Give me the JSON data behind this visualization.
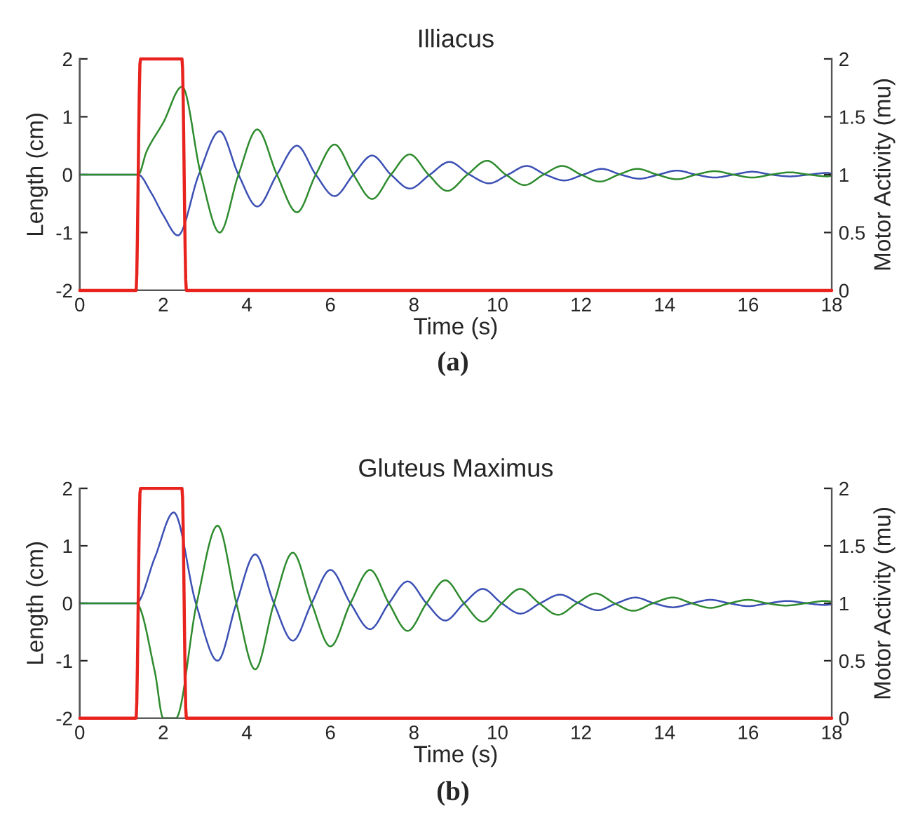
{
  "chart_data": [
    {
      "type": "line",
      "title": "Illiacus",
      "xlabel": "Time (s)",
      "ylabel": "Length (cm)",
      "y2label": "Motor Activity (mu)",
      "annotations": [
        "(a)"
      ],
      "xlim": [
        0,
        18
      ],
      "xticks": [
        0,
        2,
        4,
        6,
        8,
        10,
        12,
        14,
        16,
        18
      ],
      "ylim": [
        -2,
        2
      ],
      "yticks": [
        -2,
        -1,
        0,
        1,
        2
      ],
      "y2lim": [
        0,
        2
      ],
      "y2ticks": [
        0,
        0.5,
        1,
        1.5,
        2
      ],
      "grid": false,
      "legend": false,
      "series": [
        {
          "color": "#3c50b4",
          "x": [
            0,
            1.4,
            1.7,
            2.0,
            2.35,
            2.85,
            3.35,
            3.8,
            4.25,
            4.72,
            5.2,
            5.65,
            6.1,
            6.55,
            7.0,
            7.45,
            7.9,
            8.38,
            8.85,
            9.33,
            9.8,
            10.25,
            10.7,
            11.15,
            11.6,
            12.05,
            12.5,
            12.95,
            13.4,
            13.85,
            14.3,
            14.75,
            15.2,
            15.65,
            16.1,
            16.55,
            17.0,
            17.45,
            17.9,
            18
          ],
          "values": [
            0,
            0,
            -0.3,
            -0.7,
            -1.05,
            0,
            0.75,
            0,
            -0.55,
            0,
            0.5,
            0,
            -0.37,
            0,
            0.33,
            0,
            -0.24,
            0,
            0.22,
            0,
            -0.15,
            0,
            0.15,
            0,
            -0.1,
            0,
            0.1,
            0,
            -0.07,
            0,
            0.07,
            0,
            -0.05,
            0,
            0.05,
            0,
            -0.03,
            0,
            0.03,
            0.02
          ]
        },
        {
          "color": "#2e8b2e",
          "x": [
            0,
            1.4,
            1.6,
            2.0,
            2.45,
            2.9,
            3.35,
            3.8,
            4.25,
            4.72,
            5.2,
            5.65,
            6.1,
            6.55,
            7.0,
            7.45,
            7.9,
            8.35,
            8.8,
            9.28,
            9.75,
            10.2,
            10.65,
            11.1,
            11.55,
            12.0,
            12.45,
            12.9,
            13.35,
            13.82,
            14.3,
            14.75,
            15.2,
            15.65,
            16.1,
            16.55,
            17.0,
            17.45,
            17.9,
            18
          ],
          "values": [
            0,
            0,
            0.4,
            0.9,
            1.52,
            0,
            -1.0,
            0,
            0.78,
            0,
            -0.65,
            0,
            0.52,
            0,
            -0.42,
            0,
            0.35,
            0,
            -0.28,
            0,
            0.24,
            0,
            -0.18,
            0,
            0.15,
            0,
            -0.12,
            0,
            0.1,
            0,
            -0.08,
            0,
            0.06,
            0,
            -0.05,
            0,
            0.04,
            0,
            -0.03,
            -0.02
          ]
        },
        {
          "color": "#e8231e",
          "axis": "y2",
          "x": [
            0,
            1.35,
            1.45,
            2.45,
            2.55,
            18
          ],
          "values": [
            0,
            0,
            2,
            2,
            0,
            0
          ]
        }
      ]
    },
    {
      "type": "line",
      "title": "Gluteus Maximus",
      "xlabel": "Time (s)",
      "ylabel": "Length (cm)",
      "y2label": "Motor Activity (mu)",
      "annotations": [
        "(b)"
      ],
      "xlim": [
        0,
        18
      ],
      "xticks": [
        0,
        2,
        4,
        6,
        8,
        10,
        12,
        14,
        16,
        18
      ],
      "ylim": [
        -2,
        2
      ],
      "yticks": [
        -2,
        -1,
        0,
        1,
        2
      ],
      "y2lim": [
        0,
        2
      ],
      "y2ticks": [
        0,
        0.5,
        1,
        1.5,
        2
      ],
      "grid": false,
      "legend": false,
      "series": [
        {
          "color": "#3c50b4",
          "x": [
            0,
            1.35,
            1.8,
            2.25,
            2.78,
            3.3,
            3.75,
            4.2,
            4.65,
            5.1,
            5.55,
            6.0,
            6.48,
            6.95,
            7.4,
            7.85,
            8.3,
            8.75,
            9.2,
            9.65,
            10.1,
            10.55,
            11.02,
            11.5,
            11.95,
            12.4,
            12.85,
            13.3,
            13.75,
            14.2,
            14.65,
            15.1,
            15.55,
            16.0,
            16.48,
            16.95,
            17.4,
            17.85,
            18
          ],
          "values": [
            0,
            0,
            0.8,
            1.58,
            0,
            -1.0,
            0,
            0.85,
            0,
            -0.65,
            0,
            0.58,
            0,
            -0.45,
            0,
            0.38,
            0,
            -0.3,
            0,
            0.25,
            0,
            -0.18,
            0,
            0.15,
            0,
            -0.12,
            0,
            0.1,
            0,
            -0.07,
            0,
            0.06,
            0,
            -0.05,
            0,
            0.04,
            0,
            -0.03,
            -0.02
          ]
        },
        {
          "color": "#2e8b2e",
          "x": [
            0,
            1.35,
            1.8,
            2.0,
            2.3,
            2.8,
            3.3,
            3.75,
            4.2,
            4.65,
            5.1,
            5.55,
            6.0,
            6.48,
            6.95,
            7.4,
            7.85,
            8.3,
            8.75,
            9.2,
            9.65,
            10.1,
            10.55,
            11.0,
            11.45,
            11.9,
            12.35,
            12.8,
            13.25,
            13.72,
            14.2,
            14.65,
            15.1,
            15.55,
            16.0,
            16.45,
            16.9,
            17.38,
            17.85,
            18
          ],
          "values": [
            0,
            0,
            -1.2,
            -2.0,
            -2.0,
            0,
            1.35,
            0,
            -1.15,
            0,
            0.88,
            0,
            -0.75,
            0,
            0.58,
            0,
            -0.48,
            0,
            0.4,
            0,
            -0.32,
            0,
            0.25,
            0,
            -0.2,
            0,
            0.17,
            0,
            -0.13,
            0,
            0.1,
            0,
            -0.08,
            0,
            0.06,
            0,
            -0.04,
            0,
            0.04,
            0.03
          ]
        },
        {
          "color": "#e8231e",
          "axis": "y2",
          "x": [
            0,
            1.35,
            1.45,
            2.45,
            2.55,
            18
          ],
          "values": [
            0,
            0,
            2,
            2,
            0,
            0
          ]
        }
      ]
    }
  ]
}
